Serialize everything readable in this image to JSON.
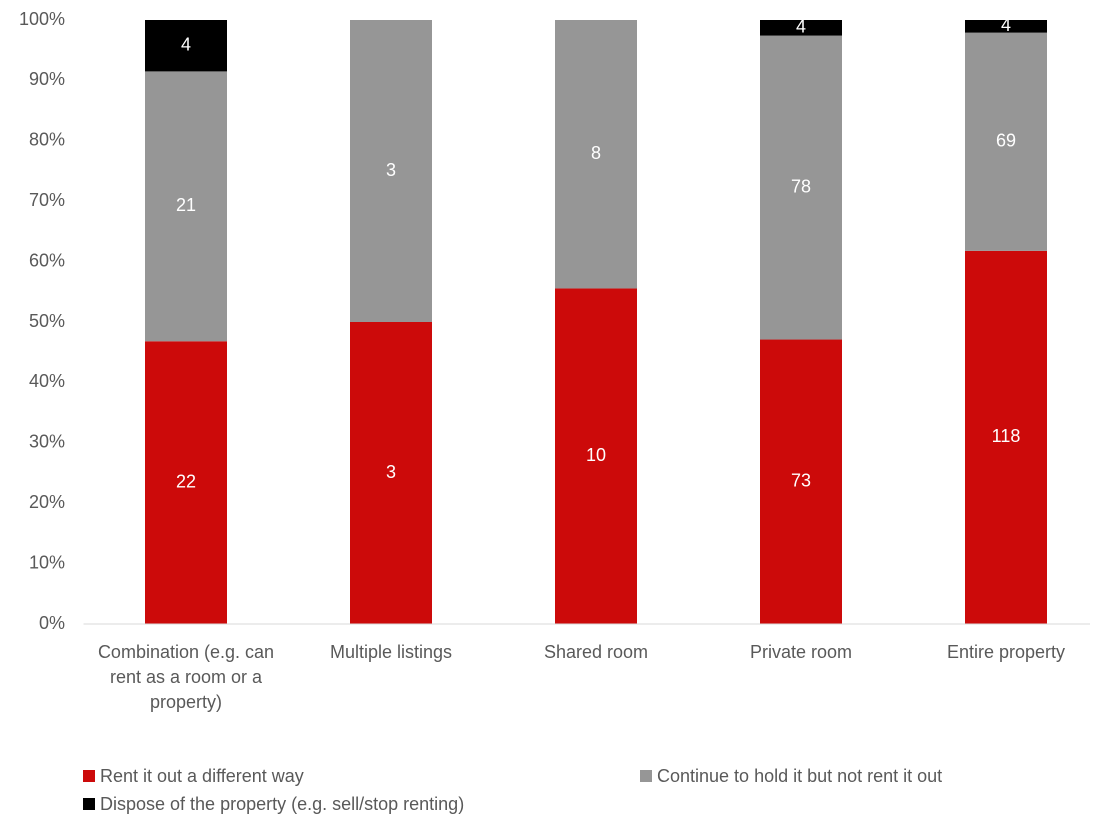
{
  "chart_data": {
    "type": "bar",
    "stacking": "percent",
    "categories": [
      "Combination (e.g. can rent as a room or a property)",
      "Multiple listings",
      "Shared room",
      "Private room",
      "Entire property"
    ],
    "series": [
      {
        "name": "Rent it out a different way",
        "color": "#cc0a0a",
        "values": [
          22,
          3,
          10,
          73,
          118
        ]
      },
      {
        "name": "Continue to hold it but not rent it out",
        "color": "#969696",
        "values": [
          21,
          3,
          8,
          78,
          69
        ]
      },
      {
        "name": "Dispose of the property (e.g. sell/stop renting)",
        "color": "#000000",
        "values": [
          4,
          0,
          0,
          4,
          4
        ]
      }
    ],
    "ylim": [
      0,
      100
    ],
    "yticks": [
      {
        "value": 0,
        "label": "0%"
      },
      {
        "value": 10,
        "label": "10%"
      },
      {
        "value": 20,
        "label": "20%"
      },
      {
        "value": 30,
        "label": "30%"
      },
      {
        "value": 40,
        "label": "40%"
      },
      {
        "value": 50,
        "label": "50%"
      },
      {
        "value": 60,
        "label": "60%"
      },
      {
        "value": 70,
        "label": "70%"
      },
      {
        "value": 80,
        "label": "80%"
      },
      {
        "value": 90,
        "label": "90%"
      },
      {
        "value": 100,
        "label": "100%"
      }
    ],
    "grid": false,
    "legend": "bottom"
  }
}
